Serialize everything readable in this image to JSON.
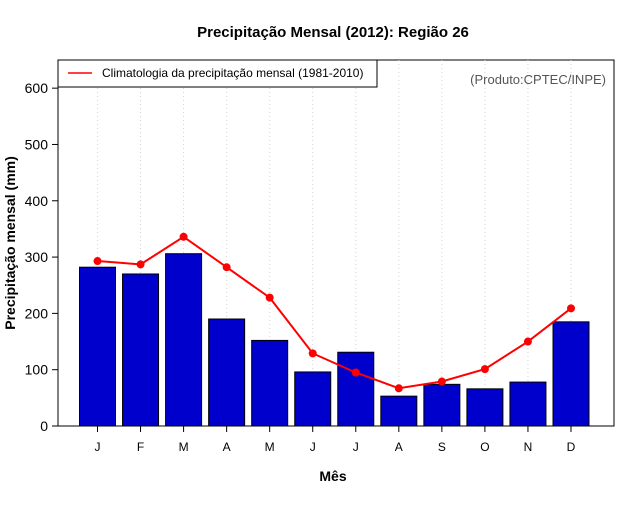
{
  "chart_data": {
    "type": "bar",
    "title": "Precipitação Mensal (2012): Região 26",
    "xlabel": "Mês",
    "ylabel": "Precipitação mensal (mm)",
    "ylim": [
      0,
      650
    ],
    "yticks": [
      0,
      100,
      200,
      300,
      400,
      500,
      600
    ],
    "categories": [
      "J",
      "F",
      "M",
      "A",
      "M",
      "J",
      "J",
      "A",
      "S",
      "O",
      "N",
      "D"
    ],
    "series": [
      {
        "name": "Precipitação mensal 2012",
        "type": "bar",
        "color": "#0000CD",
        "values": [
          282,
          270,
          306,
          190,
          152,
          96,
          131,
          53,
          74,
          66,
          78,
          185
        ]
      },
      {
        "name": "Climatologia da precipitação mensal (1981-2010)",
        "type": "line",
        "color": "#FF0000",
        "values": [
          293,
          287,
          336,
          282,
          228,
          129,
          95,
          67,
          79,
          101,
          150,
          209
        ]
      }
    ],
    "legend": {
      "position": "top-left",
      "entries": [
        "Climatologia da precipitação mensal (1981-2010)"
      ]
    },
    "annotation": "(Produto:CPTEC/INPE)",
    "grid": "vertical-dotted"
  }
}
